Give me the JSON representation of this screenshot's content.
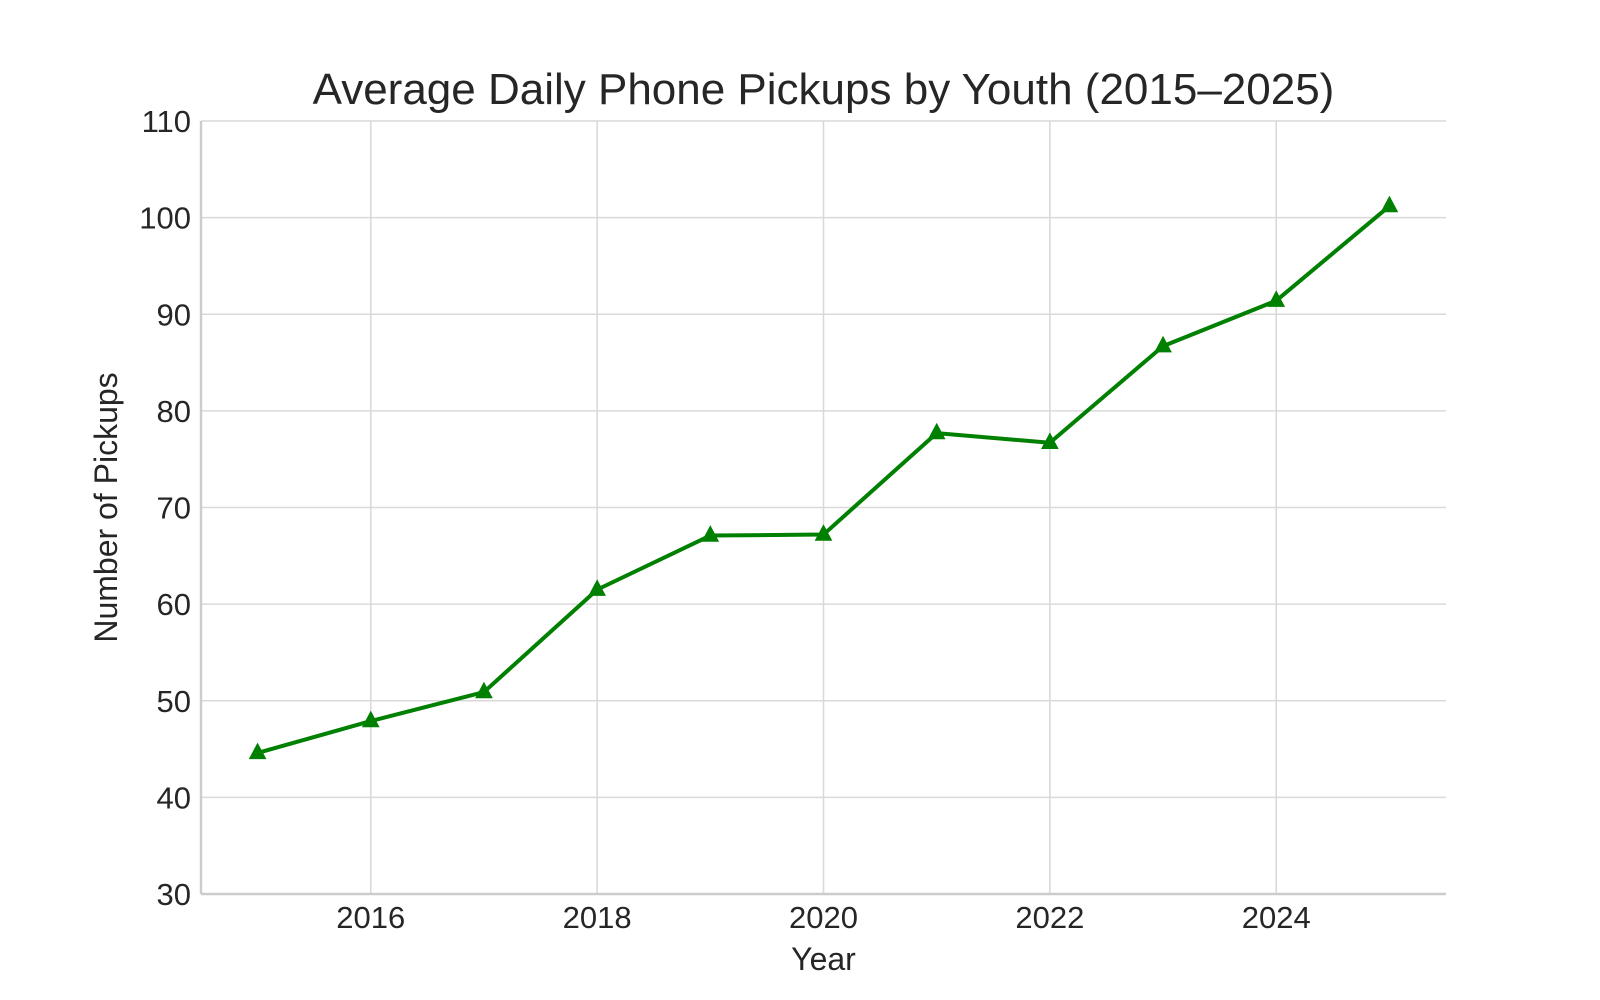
{
  "chart_data": {
    "type": "line",
    "title": "Average Daily Phone Pickups by Youth (2015–2025)",
    "xlabel": "Year",
    "ylabel": "Number of Pickups",
    "x": [
      2015,
      2016,
      2017,
      2018,
      2019,
      2020,
      2021,
      2022,
      2023,
      2024,
      2025
    ],
    "series": [
      {
        "values": [
          44.6,
          47.9,
          50.9,
          61.5,
          67.1,
          67.2,
          77.7,
          76.7,
          86.7,
          91.4,
          101.2
        ],
        "color": "#008000",
        "marker": "triangle"
      }
    ],
    "xlim": [
      2014.5,
      2025.5
    ],
    "ylim": [
      30,
      110
    ],
    "xticks": [
      2016,
      2018,
      2020,
      2022,
      2024
    ],
    "yticks": [
      30,
      40,
      50,
      60,
      70,
      80,
      90,
      100,
      110
    ],
    "grid": true,
    "legend": "none"
  }
}
